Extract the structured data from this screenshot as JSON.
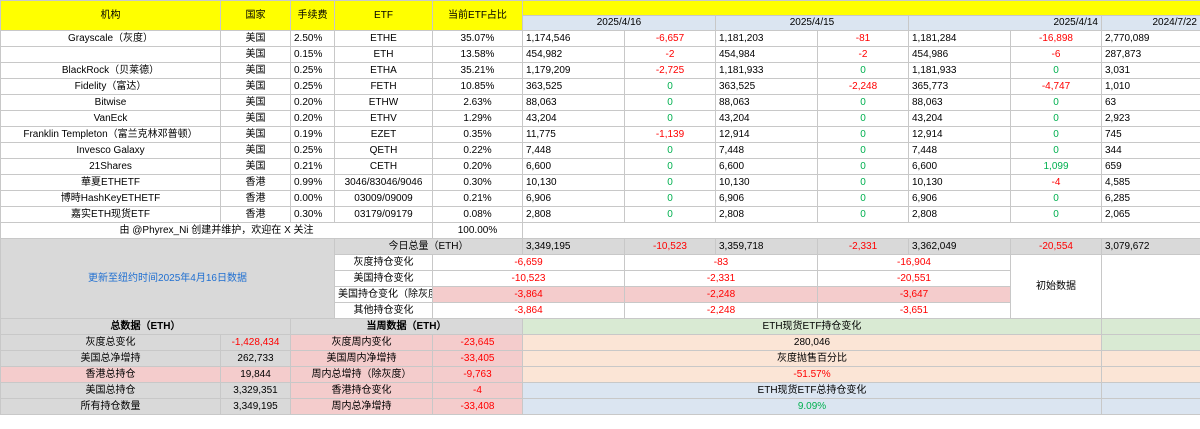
{
  "headers": {
    "org": "机构",
    "country": "国家",
    "fee": "手续费",
    "etf": "ETF",
    "share": "当前ETF占比",
    "d1": "2025/4/16",
    "d2": "2025/4/15",
    "d3": "2025/4/14",
    "d4": "2024/7/22"
  },
  "rows": [
    {
      "org": "Grayscale（灰度）",
      "country": "美国",
      "fee": "2.50%",
      "etf": "ETHE",
      "share": "35.07%",
      "h1": "1,174,546",
      "c1": "-6,657",
      "h2": "1,181,203",
      "c2": "-81",
      "h3": "1,181,284",
      "c3": "-16,898",
      "base": "2,770,089"
    },
    {
      "org": "",
      "country": "美国",
      "fee": "0.15%",
      "etf": "ETH",
      "share": "13.58%",
      "h1": "454,982",
      "c1": "-2",
      "h2": "454,984",
      "c2": "-2",
      "h3": "454,986",
      "c3": "-6",
      "base": "287,873"
    },
    {
      "org": "BlackRock（贝莱德）",
      "country": "美国",
      "fee": "0.25%",
      "etf": "ETHA",
      "share": "35.21%",
      "h1": "1,179,209",
      "c1": "-2,725",
      "h2": "1,181,933",
      "c2": "0",
      "h3": "1,181,933",
      "c3": "0",
      "base": "3,031"
    },
    {
      "org": "Fidelity（富达）",
      "country": "美国",
      "fee": "0.25%",
      "etf": "FETH",
      "share": "10.85%",
      "h1": "363,525",
      "c1": "0",
      "h2": "363,525",
      "c2": "-2,248",
      "h3": "365,773",
      "c3": "-4,747",
      "base": "1,010"
    },
    {
      "org": "Bitwise",
      "country": "美国",
      "fee": "0.20%",
      "etf": "ETHW",
      "share": "2.63%",
      "h1": "88,063",
      "c1": "0",
      "h2": "88,063",
      "c2": "0",
      "h3": "88,063",
      "c3": "0",
      "base": "63"
    },
    {
      "org": "VanEck",
      "country": "美国",
      "fee": "0.20%",
      "etf": "ETHV",
      "share": "1.29%",
      "h1": "43,204",
      "c1": "0",
      "h2": "43,204",
      "c2": "0",
      "h3": "43,204",
      "c3": "0",
      "base": "2,923"
    },
    {
      "org": "Franklin Templeton（富兰克林邓普顿）",
      "country": "美国",
      "fee": "0.19%",
      "etf": "EZET",
      "share": "0.35%",
      "h1": "11,775",
      "c1": "-1,139",
      "h2": "12,914",
      "c2": "0",
      "h3": "12,914",
      "c3": "0",
      "base": "745"
    },
    {
      "org": "Invesco Galaxy",
      "country": "美国",
      "fee": "0.25%",
      "etf": "QETH",
      "share": "0.22%",
      "h1": "7,448",
      "c1": "0",
      "h2": "7,448",
      "c2": "0",
      "h3": "7,448",
      "c3": "0",
      "base": "344"
    },
    {
      "org": "21Shares",
      "country": "美国",
      "fee": "0.21%",
      "etf": "CETH",
      "share": "0.20%",
      "h1": "6,600",
      "c1": "0",
      "h2": "6,600",
      "c2": "0",
      "h3": "6,600",
      "c3": "1,099",
      "base": "659"
    },
    {
      "org": "華夏ETHETF",
      "country": "香港",
      "fee": "0.99%",
      "etf": "3046/83046/9046",
      "share": "0.30%",
      "h1": "10,130",
      "c1": "0",
      "h2": "10,130",
      "c2": "0",
      "h3": "10,130",
      "c3": "-4",
      "base": "4,585"
    },
    {
      "org": "博時HashKeyETHETF",
      "country": "香港",
      "fee": "0.00%",
      "etf": "03009/09009",
      "share": "0.21%",
      "h1": "6,906",
      "c1": "0",
      "h2": "6,906",
      "c2": "0",
      "h3": "6,906",
      "c3": "0",
      "base": "6,285"
    },
    {
      "org": "嘉实ETH现货ETF",
      "country": "香港",
      "fee": "0.30%",
      "etf": "03179/09179",
      "share": "0.08%",
      "h1": "2,808",
      "c1": "0",
      "h2": "2,808",
      "c2": "0",
      "h3": "2,808",
      "c3": "0",
      "base": "2,065"
    }
  ],
  "credit": "由 @Phyrex_Ni 创建并维护，欢迎在 X 关注",
  "credit_share": "100.00%",
  "today_total": {
    "label": "今日总量（ETH）",
    "h1": "3,349,195",
    "c1": "-10,523",
    "h2": "3,359,718",
    "c2": "-2,331",
    "h3": "3,362,049",
    "c3": "-20,554",
    "base": "3,079,672"
  },
  "update_note": "更新至纽约时间2025年4月16日数据",
  "initial_label": "初始数据",
  "changes": [
    {
      "label": "灰度持仓变化",
      "v1": "-6,659",
      "v2": "-83",
      "v3": "-16,904"
    },
    {
      "label": "美国持仓变化",
      "v1": "-10,523",
      "v2": "-2,331",
      "v3": "-20,551"
    },
    {
      "label": "美国持仓变化（除灰度外）/增比",
      "v1": "-3,864",
      "v2": "-2,248",
      "v3": "-3,647"
    },
    {
      "label": "其他持仓变化",
      "v1": "-3,864",
      "v2": "-2,248",
      "v3": "-3,651"
    }
  ],
  "summary": {
    "total_title": "总数据（ETH）",
    "weekly_title": "当周数据（ETH）",
    "spot_change_title": "ETH现货ETF持仓变化",
    "spot_change_value": "280,046",
    "gray_sell_title": "灰度抛售百分比",
    "gray_sell_value": "-51.57%",
    "total_change_title": "ETH现货ETF总持仓变化",
    "total_change_value": "9.09%",
    "rows": [
      {
        "label": "灰度总变化",
        "value": "-1,428,434",
        "wlabel": "灰度周内变化",
        "wvalue": "-23,645"
      },
      {
        "label": "美国总净增持",
        "value": "262,733",
        "wlabel": "美国周内净增持",
        "wvalue": "-33,405"
      },
      {
        "label": "香港总持仓",
        "value": "19,844",
        "wlabel": "周内总增持（除灰度）",
        "wvalue": "-9,763"
      },
      {
        "label": "美国总持仓",
        "value": "3,329,351",
        "wlabel": "香港持仓变化",
        "wvalue": "-4"
      },
      {
        "label": "所有持仓数量",
        "value": "3,349,195",
        "wlabel": "周内总净增持",
        "wvalue": "-33,408"
      }
    ]
  },
  "colors": {
    "negative": "#ff0000",
    "positive": "#00b050",
    "header": "#ffff00",
    "date_band": "#dbe5f1",
    "link": "#1f6fd1"
  }
}
